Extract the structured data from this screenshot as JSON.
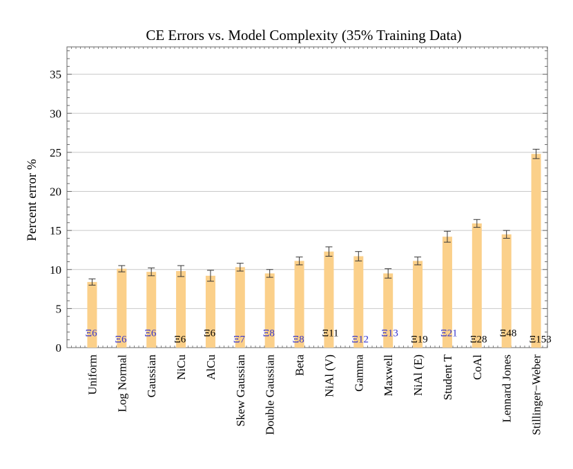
{
  "chart_data": {
    "type": "bar",
    "title": "CE Errors vs. Model Complexity (35% Training Data)",
    "xlabel": "",
    "ylabel": "Percent error %",
    "ylim": [
      0,
      38.5
    ],
    "yticks": [
      0,
      5,
      10,
      15,
      20,
      25,
      30,
      35
    ],
    "grid": true,
    "categories": [
      "Uniform",
      "Log Normal",
      "Gaussian",
      "NiCu",
      "AlCu",
      "Skew Gaussian",
      "Double Gaussian",
      "Beta",
      "NiAl (V)",
      "Gamma",
      "Maxwell",
      "NiAl (E)",
      "Student T",
      "CoAl",
      "Lennard Jones",
      "Stillinger−Weber"
    ],
    "values": [
      8.4,
      10.1,
      9.7,
      9.8,
      9.2,
      10.3,
      9.5,
      11.1,
      12.3,
      11.7,
      9.5,
      11.1,
      14.2,
      15.9,
      14.5,
      24.8
    ],
    "errors": [
      0.4,
      0.4,
      0.5,
      0.7,
      0.7,
      0.5,
      0.5,
      0.5,
      0.6,
      0.6,
      0.6,
      0.5,
      0.7,
      0.5,
      0.5,
      0.6
    ],
    "bar_color": "#fbd08a",
    "complexity_labels": [
      {
        "text": "Ξ6",
        "color": "#3333cc",
        "y": 2.0
      },
      {
        "text": "Ξ6",
        "color": "#3333cc",
        "y": 1.2
      },
      {
        "text": "Ξ6",
        "color": "#3333cc",
        "y": 2.0
      },
      {
        "text": "Ξ6",
        "color": "#000000",
        "y": 1.2
      },
      {
        "text": "Ξ6",
        "color": "#000000",
        "y": 2.0
      },
      {
        "text": "Ξ7",
        "color": "#3333cc",
        "y": 1.2
      },
      {
        "text": "Ξ8",
        "color": "#3333cc",
        "y": 2.0
      },
      {
        "text": "Ξ8",
        "color": "#3333cc",
        "y": 1.2
      },
      {
        "text": "Ξ11",
        "color": "#000000",
        "y": 2.0
      },
      {
        "text": "Ξ12",
        "color": "#3333cc",
        "y": 1.2
      },
      {
        "text": "Ξ13",
        "color": "#3333cc",
        "y": 2.0
      },
      {
        "text": "Ξ19",
        "color": "#000000",
        "y": 1.2
      },
      {
        "text": "Ξ21",
        "color": "#3333cc",
        "y": 2.0
      },
      {
        "text": "Ξ28",
        "color": "#000000",
        "y": 1.2
      },
      {
        "text": "Ξ48",
        "color": "#000000",
        "y": 2.0
      },
      {
        "text": "Ξ153",
        "color": "#000000",
        "y": 1.2
      }
    ]
  }
}
